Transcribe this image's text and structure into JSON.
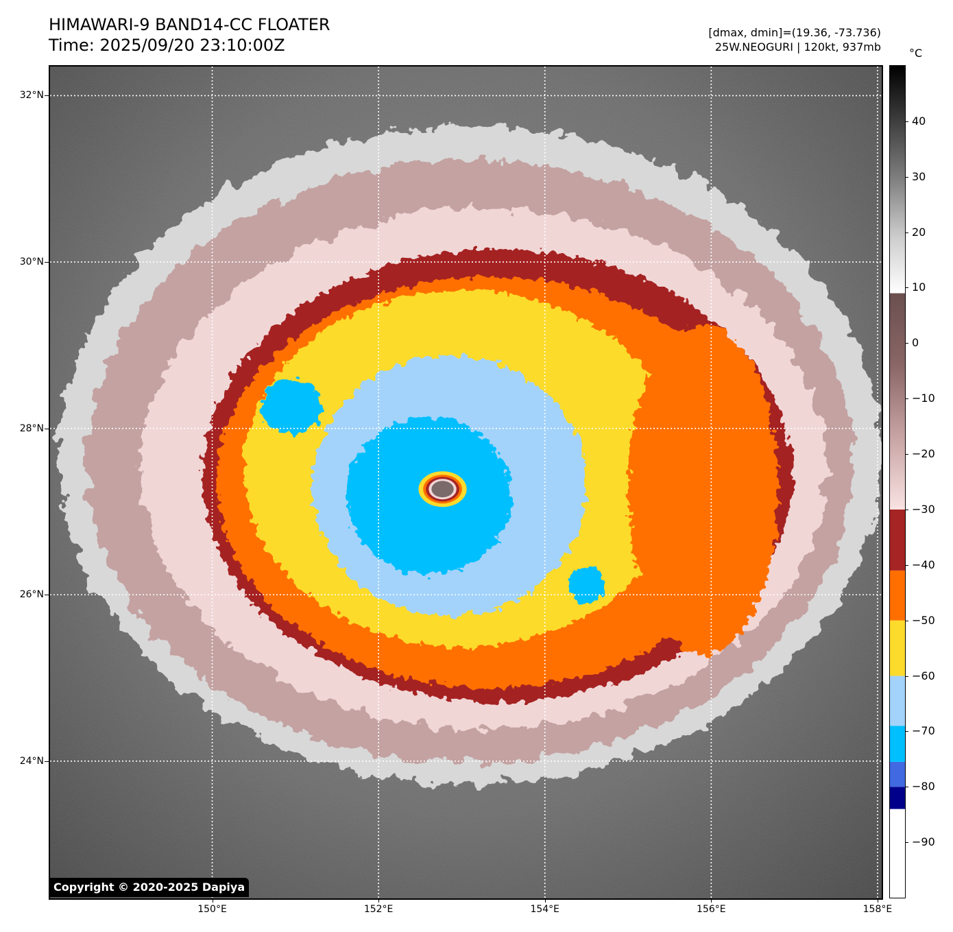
{
  "header": {
    "title_line1": "HIMAWARI-9 BAND14-CC FLOATER",
    "title_line2": "Time: 2025/09/20 23:10:00Z",
    "info_line1": "[dmax, dmin]=(19.36, -73.736)",
    "info_line2": "25W.NEOGURI | 120kt, 937mb"
  },
  "map": {
    "lat_labels": [
      "32°N",
      "30°N",
      "28°N",
      "26°N",
      "24°N"
    ],
    "lon_labels": [
      "150°E",
      "152°E",
      "154°E",
      "156°E",
      "158°E"
    ],
    "lat_values": [
      32,
      30,
      28,
      26,
      24
    ],
    "lon_values": [
      150,
      152,
      154,
      156,
      158
    ],
    "lat_range": [
      22.35,
      32.35
    ],
    "lon_range": [
      148.05,
      158.05
    ],
    "gridlines": true,
    "storm_center": {
      "lat": 27.27,
      "lon": 152.77
    },
    "copyright": "Copyright © 2020-2025 Dapiya"
  },
  "colorbar": {
    "unit": "°C",
    "range": [
      -100,
      50
    ],
    "tick_labels": [
      "40",
      "30",
      "20",
      "10",
      "0",
      "−10",
      "−20",
      "−30",
      "−40",
      "−50",
      "−60",
      "−70",
      "−80",
      "−90"
    ],
    "tick_values": [
      40,
      30,
      20,
      10,
      0,
      -10,
      -20,
      -30,
      -40,
      -50,
      -60,
      -70,
      -80,
      -90
    ],
    "segments": [
      {
        "from": -100,
        "to": -84,
        "color": "#ffffff"
      },
      {
        "from": -84,
        "to": -80,
        "color": "#00008b"
      },
      {
        "from": -80,
        "to": -75.5,
        "color": "#4169e1"
      },
      {
        "from": -75.5,
        "to": -69,
        "color": "#00bfff"
      },
      {
        "from": -69,
        "to": -60,
        "color": "#a3d3fa"
      },
      {
        "from": -60,
        "to": -50,
        "color": "#fcdb2c"
      },
      {
        "from": -50,
        "to": -41,
        "color": "#ff6f00"
      },
      {
        "from": -41,
        "to": -30,
        "color": "#a52424"
      },
      {
        "from": -30,
        "to": 9,
        "gradient": [
          "#fae3e3",
          "#c8a4a4",
          "#8a6666",
          "#6b4f4f"
        ]
      },
      {
        "from": 9,
        "to": 50,
        "gradient": [
          "#ffffff",
          "#cccccc",
          "#808080",
          "#404040",
          "#000000"
        ]
      }
    ]
  }
}
